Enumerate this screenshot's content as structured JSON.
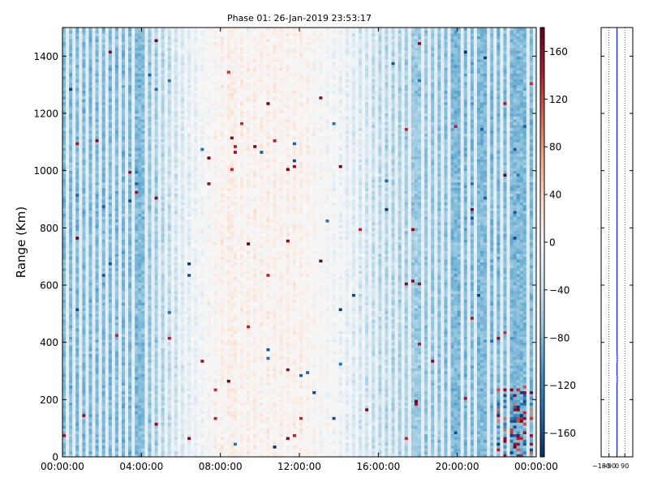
{
  "chart_data": [
    {
      "type": "heatmap",
      "title": "Phase 01: 26-Jan-2019 23:53:17",
      "xlabel": "",
      "ylabel": "Range (Km)",
      "x_ticks": [
        "00:00:00",
        "04:00:00",
        "08:00:00",
        "12:00:00",
        "16:00:00",
        "20:00:00",
        "00:00:00"
      ],
      "x_range_hours": [
        0,
        24
      ],
      "y_ticks": [
        0,
        200,
        400,
        600,
        800,
        1000,
        1200,
        1400
      ],
      "ylim": [
        0,
        1500
      ],
      "colormap": "RdBu_r",
      "colorbar": {
        "ticks": [
          -160,
          -120,
          -80,
          -40,
          0,
          40,
          80,
          120,
          160
        ],
        "range": [
          -180,
          180
        ]
      },
      "time_bins": 144,
      "range_bins": 150,
      "column_phase_profile": [
        {
          "hour": 0,
          "mean_phase": -80
        },
        {
          "hour": 4,
          "mean_phase": -80
        },
        {
          "hour": 6,
          "mean_phase": -30
        },
        {
          "hour": 8,
          "mean_phase": 10
        },
        {
          "hour": 12,
          "mean_phase": 10
        },
        {
          "hour": 14,
          "mean_phase": -10
        },
        {
          "hour": 16,
          "mean_phase": -50
        },
        {
          "hour": 20,
          "mean_phase": -80
        },
        {
          "hour": 24,
          "mean_phase": -80
        }
      ],
      "high_contrast_region": {
        "hours": [
          21.8,
          24
        ],
        "range_km": [
          0,
          250
        ]
      },
      "grid": false,
      "legend": "none"
    },
    {
      "type": "line",
      "title": "",
      "x_ticks": [
        "-180",
        "-90",
        "0",
        "90"
      ],
      "xlim": [
        -180,
        180
      ],
      "ylim": [
        0,
        1500
      ],
      "series": [
        {
          "x": [
            0,
            0,
            5,
            0,
            0,
            5,
            0,
            0
          ],
          "y": [
            0,
            250,
            270,
            290,
            320,
            340,
            370,
            1500
          ]
        }
      ],
      "grid": "vertical dotted",
      "legend": "none"
    }
  ]
}
